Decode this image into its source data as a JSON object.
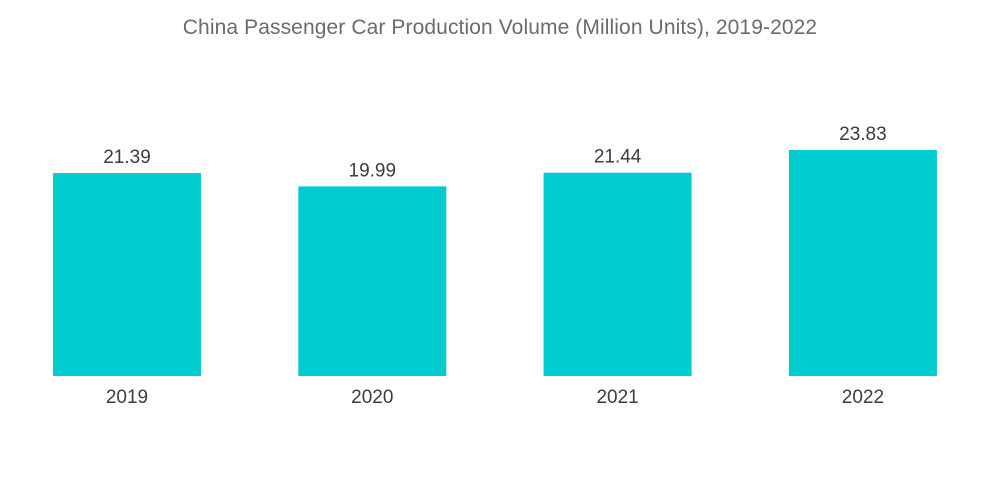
{
  "chart_data": {
    "type": "bar",
    "title": "China Passenger Car Production Volume (Million Units), 2019-2022",
    "categories": [
      "2019",
      "2020",
      "2021",
      "2022"
    ],
    "values": [
      21.39,
      19.99,
      21.44,
      23.83
    ],
    "value_labels": [
      "21.39",
      "19.99",
      "21.44",
      "23.83"
    ],
    "xlabel": "",
    "ylabel": "",
    "ylim": [
      0,
      23.83
    ],
    "grid": false,
    "legend": "none",
    "colors": {
      "bar": "#00cccf",
      "text": "#3d3d3d",
      "title": "#6b6b6b"
    }
  }
}
